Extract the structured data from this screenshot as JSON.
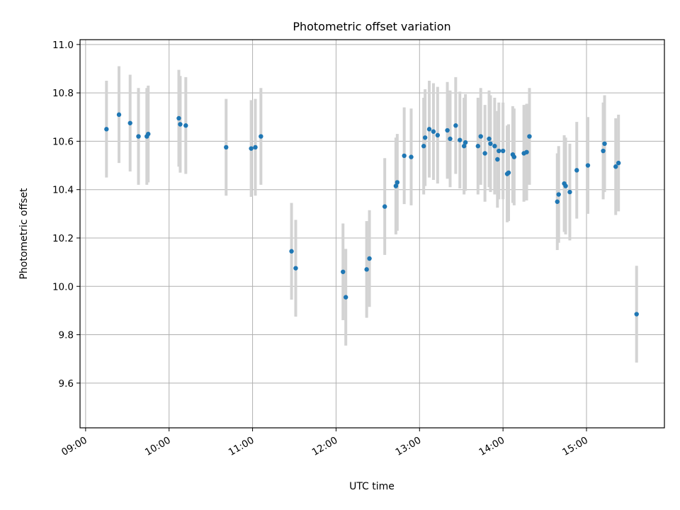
{
  "chart_data": {
    "type": "scatter",
    "title": "Photometric offset variation",
    "xlabel": "UTC time",
    "ylabel": "Photometric offset",
    "xlim": [
      "08:56",
      "15:56"
    ],
    "ylim": [
      9.415,
      11.02
    ],
    "grid": true,
    "x_ticks": [
      "09:00",
      "10:00",
      "11:00",
      "12:00",
      "13:00",
      "14:00",
      "15:00"
    ],
    "y_ticks": [
      "9.6",
      "9.8",
      "10.0",
      "10.2",
      "10.4",
      "10.6",
      "10.8",
      "11.0"
    ],
    "colors": {
      "points": "#1f77b4",
      "error_bars": "#d3d3d3",
      "grid": "#b0b0b0"
    },
    "error_bar_halfwidth": 0.2,
    "points": [
      {
        "x": "09:15",
        "y": 10.65
      },
      {
        "x": "09:24",
        "y": 10.71
      },
      {
        "x": "09:32",
        "y": 10.675
      },
      {
        "x": "09:38",
        "y": 10.62
      },
      {
        "x": "09:44",
        "y": 10.62
      },
      {
        "x": "09:45",
        "y": 10.63
      },
      {
        "x": "10:07",
        "y": 10.695
      },
      {
        "x": "10:08",
        "y": 10.67
      },
      {
        "x": "10:12",
        "y": 10.665
      },
      {
        "x": "10:41",
        "y": 10.575
      },
      {
        "x": "10:59",
        "y": 10.57
      },
      {
        "x": "11:02",
        "y": 10.575
      },
      {
        "x": "11:06",
        "y": 10.62
      },
      {
        "x": "11:28",
        "y": 10.145
      },
      {
        "x": "11:31",
        "y": 10.075
      },
      {
        "x": "12:05",
        "y": 10.06
      },
      {
        "x": "12:07",
        "y": 9.955
      },
      {
        "x": "12:22",
        "y": 10.07
      },
      {
        "x": "12:24",
        "y": 10.115
      },
      {
        "x": "12:35",
        "y": 10.33
      },
      {
        "x": "12:43",
        "y": 10.415
      },
      {
        "x": "12:44",
        "y": 10.43
      },
      {
        "x": "12:49",
        "y": 10.54
      },
      {
        "x": "12:54",
        "y": 10.535
      },
      {
        "x": "13:03",
        "y": 10.58
      },
      {
        "x": "13:04",
        "y": 10.615
      },
      {
        "x": "13:07",
        "y": 10.65
      },
      {
        "x": "13:10",
        "y": 10.64
      },
      {
        "x": "13:13",
        "y": 10.625
      },
      {
        "x": "13:20",
        "y": 10.645
      },
      {
        "x": "13:22",
        "y": 10.61
      },
      {
        "x": "13:26",
        "y": 10.665
      },
      {
        "x": "13:29",
        "y": 10.605
      },
      {
        "x": "13:32",
        "y": 10.58
      },
      {
        "x": "13:33",
        "y": 10.595
      },
      {
        "x": "13:42",
        "y": 10.58
      },
      {
        "x": "13:44",
        "y": 10.62
      },
      {
        "x": "13:47",
        "y": 10.55
      },
      {
        "x": "13:50",
        "y": 10.61
      },
      {
        "x": "13:51",
        "y": 10.59
      },
      {
        "x": "13:54",
        "y": 10.58
      },
      {
        "x": "13:56",
        "y": 10.525
      },
      {
        "x": "13:57",
        "y": 10.56
      },
      {
        "x": "14:00",
        "y": 10.56
      },
      {
        "x": "14:03",
        "y": 10.465
      },
      {
        "x": "14:04",
        "y": 10.47
      },
      {
        "x": "14:07",
        "y": 10.545
      },
      {
        "x": "14:08",
        "y": 10.535
      },
      {
        "x": "14:15",
        "y": 10.55
      },
      {
        "x": "14:17",
        "y": 10.555
      },
      {
        "x": "14:19",
        "y": 10.62
      },
      {
        "x": "14:39",
        "y": 10.35
      },
      {
        "x": "14:40",
        "y": 10.38
      },
      {
        "x": "14:44",
        "y": 10.425
      },
      {
        "x": "14:45",
        "y": 10.415
      },
      {
        "x": "14:48",
        "y": 10.39
      },
      {
        "x": "14:53",
        "y": 10.48
      },
      {
        "x": "15:01",
        "y": 10.5
      },
      {
        "x": "15:12",
        "y": 10.56
      },
      {
        "x": "15:13",
        "y": 10.59
      },
      {
        "x": "15:21",
        "y": 10.495
      },
      {
        "x": "15:23",
        "y": 10.51
      },
      {
        "x": "15:36",
        "y": 9.885
      }
    ]
  }
}
